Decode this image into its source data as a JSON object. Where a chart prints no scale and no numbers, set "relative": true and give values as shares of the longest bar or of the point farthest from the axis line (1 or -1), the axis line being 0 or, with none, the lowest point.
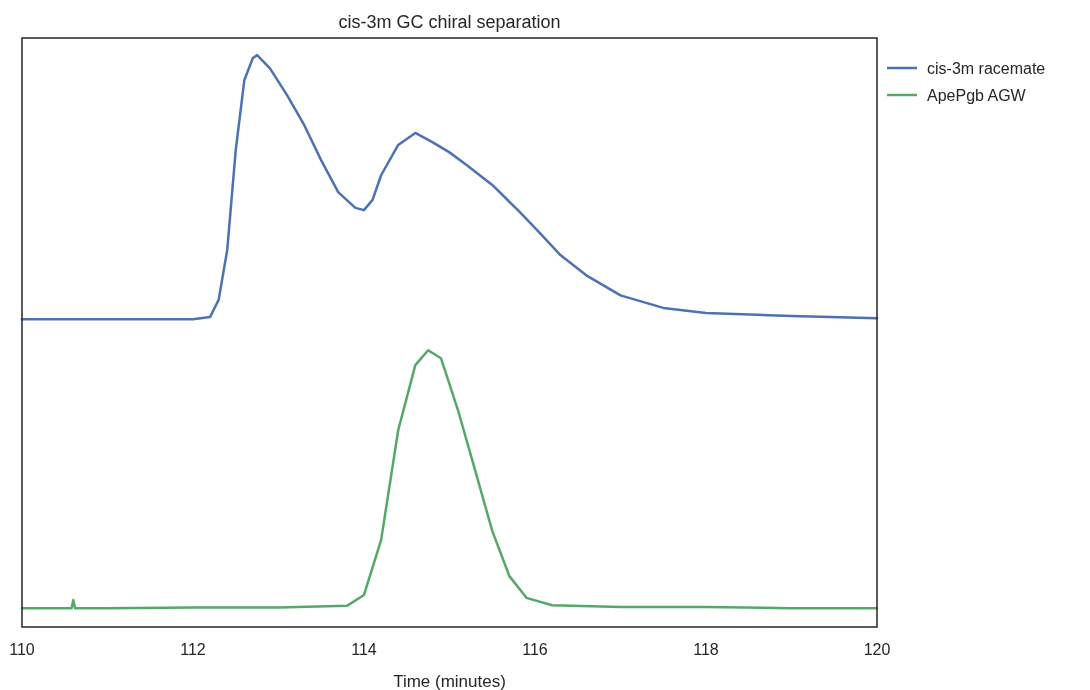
{
  "chart_data": {
    "type": "line",
    "title": "cis-3m GC chiral separation",
    "xlabel": "Time (minutes)",
    "relative": true,
    "xlim": [
      110,
      120
    ],
    "xticks": [
      110,
      112,
      114,
      116,
      118,
      120
    ],
    "grid": false,
    "legend": "top right",
    "line_style": "solid",
    "marker": "none",
    "tick_labels": "x",
    "series": [
      {
        "name": "cis-3m racemate",
        "color": "#4c72b0",
        "x": [
          110,
          111,
          112,
          112.2,
          112.3,
          112.4,
          112.5,
          112.6,
          112.7,
          112.75,
          112.9,
          113.1,
          113.3,
          113.5,
          113.7,
          113.9,
          114.0,
          114.1,
          114.2,
          114.4,
          114.6,
          114.8,
          115.0,
          115.2,
          115.5,
          115.8,
          116.0,
          116.3,
          116.6,
          117.0,
          117.5,
          118.0,
          119.0,
          120
        ],
        "values": [
          0.538,
          0.538,
          0.538,
          0.542,
          0.572,
          0.659,
          0.834,
          0.956,
          0.995,
          1.0,
          0.977,
          0.93,
          0.878,
          0.816,
          0.76,
          0.733,
          0.729,
          0.747,
          0.79,
          0.843,
          0.864,
          0.848,
          0.83,
          0.808,
          0.773,
          0.729,
          0.698,
          0.65,
          0.615,
          0.58,
          0.558,
          0.549,
          0.544,
          0.54
        ]
      },
      {
        "name": "ApePgb AGW",
        "color": "#55a868",
        "x": [
          110,
          110.58,
          110.6,
          110.62,
          111,
          112,
          113,
          113.8,
          114.0,
          114.2,
          114.4,
          114.6,
          114.75,
          114.9,
          115.1,
          115.3,
          115.5,
          115.7,
          115.9,
          116.2,
          117,
          118,
          119,
          120
        ],
        "values": [
          0.033,
          0.033,
          0.047,
          0.033,
          0.033,
          0.034,
          0.034,
          0.037,
          0.056,
          0.152,
          0.344,
          0.458,
          0.484,
          0.47,
          0.379,
          0.274,
          0.168,
          0.089,
          0.051,
          0.038,
          0.035,
          0.035,
          0.033,
          0.033
        ]
      }
    ]
  }
}
